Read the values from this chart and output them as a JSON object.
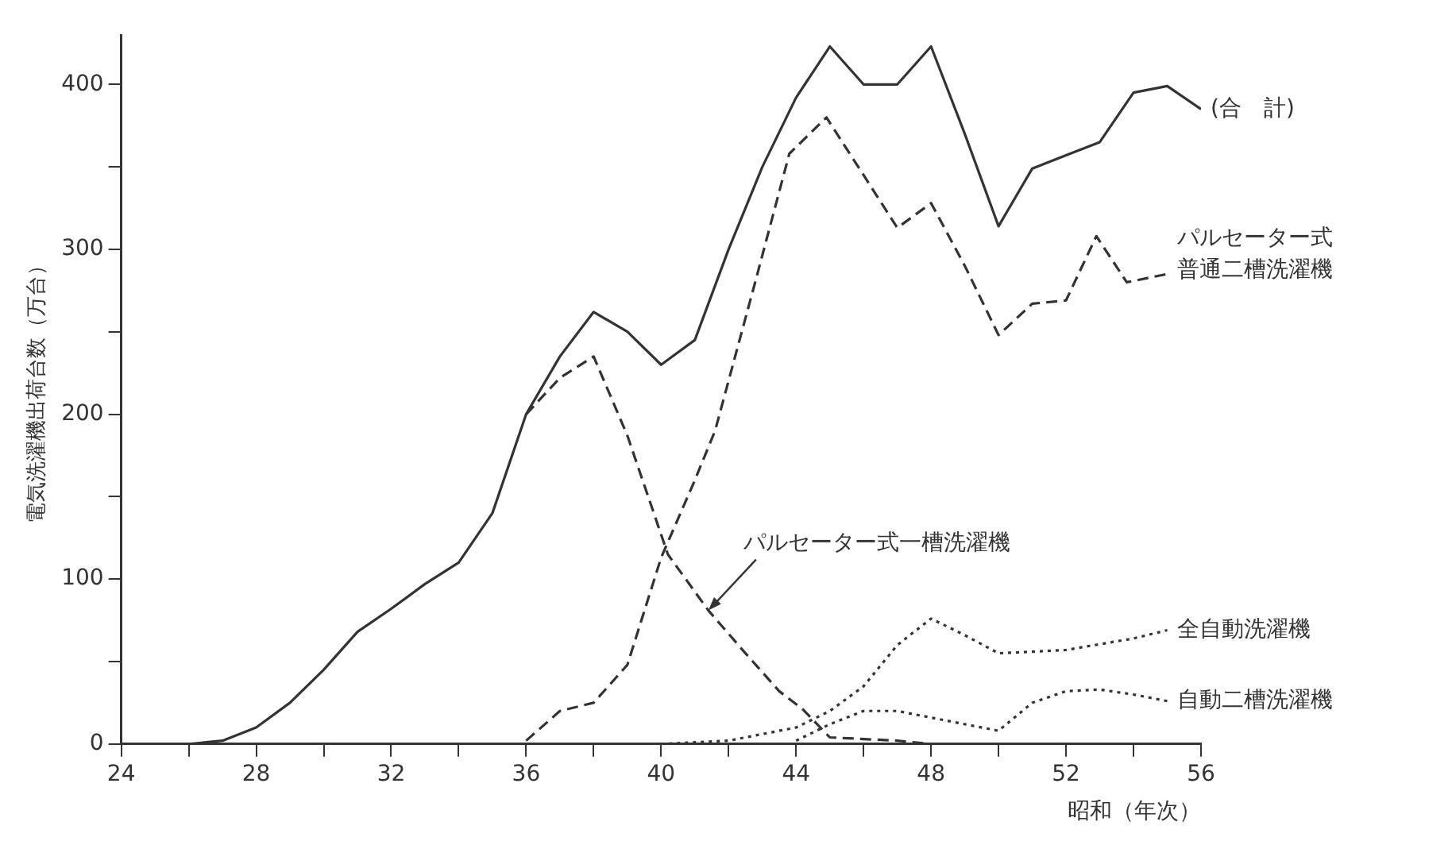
{
  "chart_data": {
    "type": "line",
    "ylabel": "電気洗濯機出荷台数（万台）",
    "xlabel": "昭和（年次）",
    "grid": false,
    "legend": false,
    "marker": "none",
    "xlim": [
      24,
      56
    ],
    "ylim": [
      0,
      430
    ],
    "xticks": [
      24,
      {
        "value": 26,
        "label": null
      },
      28,
      {
        "value": 30,
        "label": null
      },
      32,
      {
        "value": 34,
        "label": null
      },
      36,
      {
        "value": 38,
        "label": null
      },
      40,
      {
        "value": 42,
        "label": null
      },
      44,
      {
        "value": 46,
        "label": null
      },
      48,
      {
        "value": 50,
        "label": null
      },
      52,
      {
        "value": 54,
        "label": null
      },
      56
    ],
    "yticks": [
      0,
      {
        "value": 50,
        "label": null
      },
      100,
      {
        "value": 150,
        "label": null
      },
      200,
      {
        "value": 250,
        "label": null
      },
      300,
      {
        "value": 350,
        "label": null
      },
      400
    ],
    "series": [
      {
        "name": "(合　計)",
        "color": "#333333",
        "line_style": "solid",
        "x": [
          24,
          26,
          27,
          28,
          29,
          30,
          31,
          32,
          33,
          34,
          35,
          36,
          37,
          38,
          39,
          40,
          41,
          42,
          43,
          44,
          45,
          46,
          47,
          48,
          49,
          50,
          51,
          52,
          53,
          54,
          55,
          56
        ],
        "values": [
          0,
          0,
          2,
          10,
          25,
          45,
          68,
          82,
          97,
          110,
          140,
          200,
          235,
          262,
          250,
          230,
          245,
          300,
          350,
          392,
          423,
          400,
          400,
          423,
          370,
          314,
          349,
          357,
          365,
          395,
          399,
          385
        ]
      },
      {
        "name": "パルセーター式普通二槽洗濯機",
        "color": "#333333",
        "line_style": "dashed",
        "x": [
          36,
          37,
          38,
          39,
          40,
          41,
          41.6,
          42.8,
          43.8,
          44.9,
          46,
          47,
          48,
          49,
          50,
          51,
          52,
          52.9,
          53.8,
          55
        ],
        "values": [
          2,
          20,
          25,
          48,
          113,
          160,
          190,
          281,
          358,
          380,
          345,
          313,
          328,
          290,
          248,
          267,
          269,
          308,
          280,
          285
        ]
      },
      {
        "name": "パルセーター式一槽洗濯機",
        "color": "#333333",
        "line_style": "dashed",
        "x": [
          36,
          37,
          38,
          39,
          40.2,
          41.4,
          42.5,
          43.5,
          44.2,
          45,
          46,
          47,
          48
        ],
        "values": [
          200,
          222,
          235,
          187,
          115,
          81,
          55,
          32,
          21,
          4,
          3,
          2,
          0
        ]
      },
      {
        "name": "全自動洗濯機",
        "color": "#333333",
        "line_style": "dotted",
        "x": [
          40,
          42,
          44,
          45,
          46,
          47,
          48,
          49,
          50,
          52,
          54,
          55
        ],
        "values": [
          0,
          2,
          10,
          20,
          35,
          60,
          76,
          66,
          55,
          57,
          64,
          69
        ]
      },
      {
        "name": "自動二槽洗濯機",
        "color": "#333333",
        "line_style": "dotted",
        "x": [
          44,
          45,
          46,
          47,
          48,
          49,
          50,
          51,
          52,
          53,
          54,
          55
        ],
        "values": [
          2,
          12,
          20,
          20,
          16,
          12,
          8,
          25,
          32,
          33,
          30,
          26
        ]
      }
    ]
  }
}
